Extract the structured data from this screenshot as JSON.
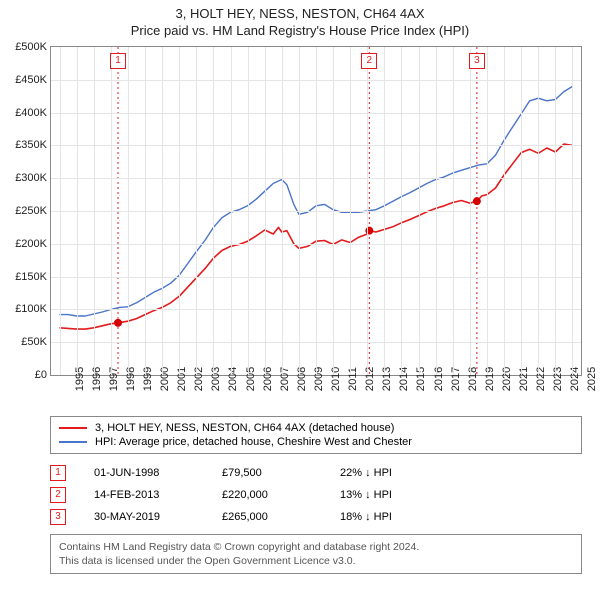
{
  "title_main": "3, HOLT HEY, NESS, NESTON, CH64 4AX",
  "title_sub": "Price paid vs. HM Land Registry's House Price Index (HPI)",
  "chart": {
    "type": "line",
    "background_color": "#ffffff",
    "grid_color": "#e5e5e5",
    "border_color": "#888888",
    "x": {
      "min": 1994.5,
      "max": 2025.5,
      "ticks": [
        1995,
        1996,
        1997,
        1998,
        1999,
        2000,
        2001,
        2002,
        2003,
        2004,
        2005,
        2006,
        2007,
        2008,
        2009,
        2010,
        2011,
        2012,
        2013,
        2014,
        2015,
        2016,
        2017,
        2018,
        2019,
        2020,
        2021,
        2022,
        2023,
        2024,
        2025
      ],
      "tick_labels": [
        "1995",
        "1996",
        "1997",
        "1998",
        "1999",
        "2000",
        "2001",
        "2002",
        "2003",
        "2004",
        "2005",
        "2006",
        "2007",
        "2008",
        "2009",
        "2010",
        "2011",
        "2012",
        "2013",
        "2014",
        "2015",
        "2016",
        "2017",
        "2018",
        "2019",
        "2020",
        "2021",
        "2022",
        "2023",
        "2024",
        "2025"
      ]
    },
    "y": {
      "min": 0,
      "max": 500000,
      "ticks": [
        0,
        50000,
        100000,
        150000,
        200000,
        250000,
        300000,
        350000,
        400000,
        450000,
        500000
      ],
      "tick_labels": [
        "£0",
        "£50K",
        "£100K",
        "£150K",
        "£200K",
        "£250K",
        "£300K",
        "£350K",
        "£400K",
        "£450K",
        "£500K"
      ]
    },
    "series": [
      {
        "id": "hpi",
        "label": "HPI: Average price, detached house, Cheshire West and Chester",
        "color": "#4a74c9",
        "line_width": 1.4,
        "points": [
          [
            1995.0,
            92000
          ],
          [
            1995.5,
            92000
          ],
          [
            1996.0,
            90000
          ],
          [
            1996.5,
            90000
          ],
          [
            1997.0,
            93000
          ],
          [
            1997.5,
            96000
          ],
          [
            1998.0,
            100000
          ],
          [
            1998.5,
            103000
          ],
          [
            1999.0,
            104000
          ],
          [
            1999.5,
            110000
          ],
          [
            2000.0,
            118000
          ],
          [
            2000.5,
            126000
          ],
          [
            2001.0,
            132000
          ],
          [
            2001.5,
            140000
          ],
          [
            2002.0,
            152000
          ],
          [
            2002.5,
            170000
          ],
          [
            2003.0,
            188000
          ],
          [
            2003.5,
            205000
          ],
          [
            2004.0,
            225000
          ],
          [
            2004.5,
            240000
          ],
          [
            2005.0,
            248000
          ],
          [
            2005.5,
            252000
          ],
          [
            2006.0,
            258000
          ],
          [
            2006.5,
            268000
          ],
          [
            2007.0,
            280000
          ],
          [
            2007.5,
            292000
          ],
          [
            2008.0,
            298000
          ],
          [
            2008.3,
            290000
          ],
          [
            2008.7,
            260000
          ],
          [
            2009.0,
            245000
          ],
          [
            2009.5,
            248000
          ],
          [
            2010.0,
            258000
          ],
          [
            2010.5,
            260000
          ],
          [
            2011.0,
            252000
          ],
          [
            2011.5,
            248000
          ],
          [
            2012.0,
            248000
          ],
          [
            2012.5,
            248000
          ],
          [
            2013.0,
            250000
          ],
          [
            2013.5,
            252000
          ],
          [
            2014.0,
            258000
          ],
          [
            2014.5,
            265000
          ],
          [
            2015.0,
            272000
          ],
          [
            2015.5,
            278000
          ],
          [
            2016.0,
            285000
          ],
          [
            2016.5,
            292000
          ],
          [
            2017.0,
            298000
          ],
          [
            2017.5,
            302000
          ],
          [
            2018.0,
            308000
          ],
          [
            2018.5,
            312000
          ],
          [
            2019.0,
            316000
          ],
          [
            2019.5,
            320000
          ],
          [
            2020.0,
            322000
          ],
          [
            2020.5,
            335000
          ],
          [
            2021.0,
            358000
          ],
          [
            2021.5,
            378000
          ],
          [
            2022.0,
            398000
          ],
          [
            2022.5,
            418000
          ],
          [
            2023.0,
            422000
          ],
          [
            2023.5,
            418000
          ],
          [
            2024.0,
            420000
          ],
          [
            2024.5,
            432000
          ],
          [
            2025.0,
            440000
          ]
        ]
      },
      {
        "id": "price_paid",
        "label": "3, HOLT HEY, NESS, NESTON, CH64 4AX (detached house)",
        "color": "#e41a1c",
        "line_width": 1.6,
        "points": [
          [
            1995.0,
            72000
          ],
          [
            1995.5,
            71000
          ],
          [
            1996.0,
            70000
          ],
          [
            1996.5,
            70000
          ],
          [
            1997.0,
            72000
          ],
          [
            1997.5,
            75000
          ],
          [
            1998.0,
            78000
          ],
          [
            1998.42,
            79500
          ],
          [
            1999.0,
            82000
          ],
          [
            1999.5,
            86000
          ],
          [
            2000.0,
            92000
          ],
          [
            2000.5,
            98000
          ],
          [
            2001.0,
            103000
          ],
          [
            2001.5,
            110000
          ],
          [
            2002.0,
            120000
          ],
          [
            2002.5,
            134000
          ],
          [
            2003.0,
            148000
          ],
          [
            2003.5,
            162000
          ],
          [
            2004.0,
            178000
          ],
          [
            2004.5,
            190000
          ],
          [
            2005.0,
            196000
          ],
          [
            2005.5,
            199000
          ],
          [
            2006.0,
            204000
          ],
          [
            2006.5,
            212000
          ],
          [
            2007.0,
            221000
          ],
          [
            2007.5,
            215000
          ],
          [
            2007.8,
            225000
          ],
          [
            2008.0,
            218000
          ],
          [
            2008.3,
            220000
          ],
          [
            2008.7,
            200000
          ],
          [
            2009.0,
            193000
          ],
          [
            2009.5,
            196000
          ],
          [
            2010.0,
            204000
          ],
          [
            2010.5,
            205000
          ],
          [
            2011.0,
            199000
          ],
          [
            2011.5,
            206000
          ],
          [
            2012.0,
            202000
          ],
          [
            2012.5,
            210000
          ],
          [
            2013.0,
            215000
          ],
          [
            2013.12,
            220000
          ],
          [
            2013.5,
            218000
          ],
          [
            2014.0,
            222000
          ],
          [
            2014.5,
            226000
          ],
          [
            2015.0,
            232000
          ],
          [
            2015.5,
            237000
          ],
          [
            2016.0,
            243000
          ],
          [
            2016.5,
            249000
          ],
          [
            2017.0,
            254000
          ],
          [
            2017.5,
            258000
          ],
          [
            2018.0,
            263000
          ],
          [
            2018.5,
            266000
          ],
          [
            2019.0,
            262000
          ],
          [
            2019.41,
            265000
          ],
          [
            2019.7,
            273000
          ],
          [
            2020.0,
            275000
          ],
          [
            2020.5,
            285000
          ],
          [
            2021.0,
            305000
          ],
          [
            2021.5,
            322000
          ],
          [
            2022.0,
            339000
          ],
          [
            2022.5,
            344000
          ],
          [
            2023.0,
            338000
          ],
          [
            2023.5,
            346000
          ],
          [
            2024.0,
            340000
          ],
          [
            2024.5,
            352000
          ],
          [
            2025.0,
            350000
          ]
        ]
      }
    ],
    "markers": [
      {
        "x": 1998.42,
        "y": 79500,
        "color": "#d40000",
        "radius": 4
      },
      {
        "x": 2013.12,
        "y": 220000,
        "color": "#d40000",
        "radius": 4
      },
      {
        "x": 2019.41,
        "y": 265000,
        "color": "#d40000",
        "radius": 4
      }
    ],
    "event_lines": [
      {
        "n": "1",
        "x": 1998.42,
        "color": "#e41a1c"
      },
      {
        "n": "2",
        "x": 2013.12,
        "color": "#e41a1c"
      },
      {
        "n": "3",
        "x": 2019.41,
        "color": "#e41a1c"
      }
    ]
  },
  "legend": {
    "items": [
      {
        "color": "#e41a1c",
        "label": "3, HOLT HEY, NESS, NESTON, CH64 4AX (detached house)"
      },
      {
        "color": "#4a74c9",
        "label": "HPI: Average price, detached house, Cheshire West and Chester"
      }
    ]
  },
  "events_table": {
    "rows": [
      {
        "n": "1",
        "color": "#e41a1c",
        "date": "01-JUN-1998",
        "price": "£79,500",
        "diff": "22% ↓ HPI"
      },
      {
        "n": "2",
        "color": "#e41a1c",
        "date": "14-FEB-2013",
        "price": "£220,000",
        "diff": "13% ↓ HPI"
      },
      {
        "n": "3",
        "color": "#e41a1c",
        "date": "30-MAY-2019",
        "price": "£265,000",
        "diff": "18% ↓ HPI"
      }
    ]
  },
  "footer": {
    "line1": "Contains HM Land Registry data © Crown copyright and database right 2024.",
    "line2": "This data is licensed under the Open Government Licence v3.0."
  }
}
